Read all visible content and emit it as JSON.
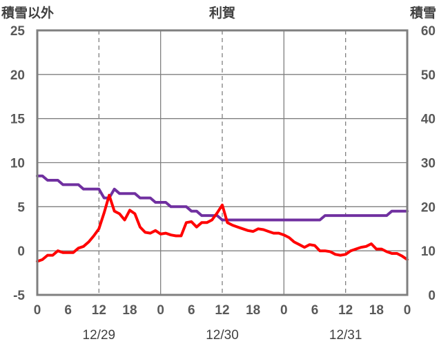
{
  "chart_data": {
    "type": "line",
    "title": "利賀",
    "left_axis_label": "積雪以外",
    "right_axis_label": "積雪",
    "y_left": {
      "min": -5,
      "max": 25,
      "ticks": [
        -5,
        0,
        5,
        10,
        15,
        20,
        25
      ]
    },
    "y_right": {
      "min": 0,
      "max": 60,
      "ticks": [
        0,
        10,
        20,
        30,
        40,
        50,
        60
      ]
    },
    "x": {
      "min": 0,
      "max": 72,
      "tick_step": 6,
      "tick_labels": [
        "0",
        "6",
        "12",
        "18",
        "0",
        "6",
        "12",
        "18",
        "0",
        "6",
        "12",
        "18",
        "0"
      ]
    },
    "date_labels": [
      "12/29",
      "12/30",
      "12/31"
    ],
    "grid": {
      "solid_every": 24,
      "dashed_at": [
        12,
        36,
        60
      ]
    },
    "colors": {
      "frame": "#7f7f7f",
      "grid": "#7f7f7f",
      "series_left": "#ff0000",
      "series_right": "#7030a0"
    },
    "series": [
      {
        "axis": "left",
        "x": [
          0,
          1,
          2,
          3,
          4,
          5,
          6,
          7,
          8,
          9,
          10,
          11,
          12,
          13,
          14,
          15,
          16,
          17,
          18,
          19,
          20,
          21,
          22,
          23,
          24,
          25,
          26,
          27,
          28,
          29,
          30,
          31,
          32,
          33,
          34,
          35,
          36,
          37,
          38,
          39,
          40,
          41,
          42,
          43,
          44,
          45,
          46,
          47,
          48,
          49,
          50,
          51,
          52,
          53,
          54,
          55,
          56,
          57,
          58,
          59,
          60,
          61,
          62,
          63,
          64,
          65,
          66,
          67,
          68,
          69,
          70,
          71,
          72
        ],
        "values": [
          -1.2,
          -1.0,
          -0.5,
          -0.5,
          0.0,
          -0.2,
          -0.2,
          -0.2,
          0.3,
          0.5,
          1.0,
          1.7,
          2.5,
          4.3,
          6.3,
          4.5,
          4.2,
          3.5,
          4.6,
          4.2,
          2.7,
          2.1,
          2.0,
          2.3,
          1.9,
          2.0,
          1.8,
          1.7,
          1.7,
          3.2,
          3.3,
          2.7,
          3.2,
          3.2,
          3.5,
          4.3,
          5.2,
          3.2,
          2.9,
          2.7,
          2.5,
          2.3,
          2.2,
          2.5,
          2.4,
          2.2,
          2.0,
          2.0,
          1.8,
          1.5,
          1.0,
          0.7,
          0.4,
          0.7,
          0.6,
          0.0,
          0.0,
          -0.1,
          -0.4,
          -0.5,
          -0.4,
          0.0,
          0.2,
          0.4,
          0.5,
          0.8,
          0.2,
          0.2,
          -0.1,
          -0.3,
          -0.3,
          -0.6,
          -1.0
        ]
      },
      {
        "axis": "right",
        "x": [
          0,
          1,
          2,
          3,
          4,
          5,
          6,
          7,
          8,
          9,
          10,
          11,
          12,
          13,
          14,
          15,
          16,
          17,
          18,
          19,
          20,
          21,
          22,
          23,
          24,
          25,
          26,
          27,
          28,
          29,
          30,
          31,
          32,
          33,
          34,
          35,
          36,
          37,
          38,
          39,
          40,
          41,
          42,
          43,
          44,
          45,
          46,
          47,
          48,
          49,
          50,
          51,
          52,
          53,
          54,
          55,
          56,
          57,
          58,
          59,
          60,
          61,
          62,
          63,
          64,
          65,
          66,
          67,
          68,
          69,
          70,
          71,
          72
        ],
        "values": [
          27,
          27,
          26,
          26,
          26,
          25,
          25,
          25,
          25,
          24,
          24,
          24,
          24,
          22,
          22,
          24,
          23,
          23,
          23,
          23,
          22,
          22,
          22,
          21,
          21,
          21,
          20,
          20,
          20,
          20,
          19,
          19,
          18,
          18,
          18,
          18,
          17,
          17,
          17,
          17,
          17,
          17,
          17,
          17,
          17,
          17,
          17,
          17,
          17,
          17,
          17,
          17,
          17,
          17,
          17,
          17,
          18,
          18,
          18,
          18,
          18,
          18,
          18,
          18,
          18,
          18,
          18,
          18,
          18,
          19,
          19,
          19,
          19
        ]
      }
    ]
  }
}
